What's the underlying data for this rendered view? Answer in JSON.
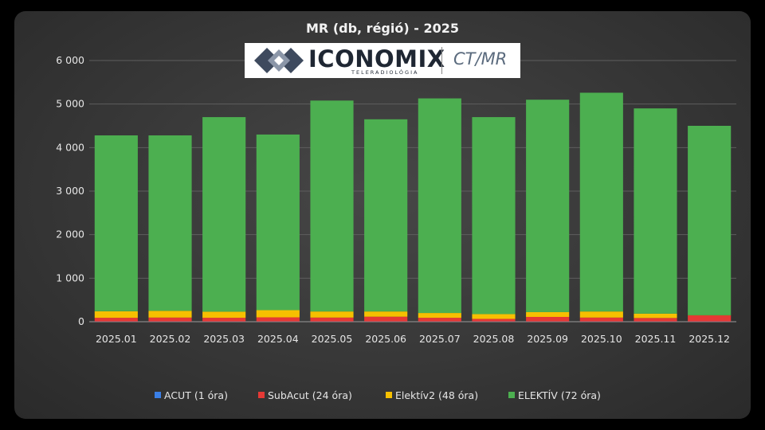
{
  "chart_data": {
    "type": "bar",
    "stacked": true,
    "title": "MR (db, régió) - 2025",
    "categories": [
      "2025.01",
      "2025.02",
      "2025.03",
      "2025.04",
      "2025.05",
      "2025.06",
      "2025.07",
      "2025.08",
      "2025.09",
      "2025.10",
      "2025.11",
      "2025.12"
    ],
    "series": [
      {
        "name": "ACUT (1 óra)",
        "color": "#3a7fe6",
        "values": [
          5,
          5,
          5,
          5,
          5,
          5,
          5,
          5,
          5,
          5,
          5,
          5
        ]
      },
      {
        "name": "SubAcut (24 óra)",
        "color": "#e53935",
        "values": [
          85,
          90,
          85,
          95,
          90,
          110,
          85,
          60,
          105,
          90,
          80,
          140
        ]
      },
      {
        "name": "Elektív2 (48 óra)",
        "color": "#f6c000",
        "values": [
          150,
          155,
          140,
          165,
          140,
          120,
          110,
          110,
          110,
          140,
          100,
          5
        ]
      },
      {
        "name": "ELEKTÍV (72 óra)",
        "color": "#4caf50",
        "values": [
          4040,
          4030,
          4470,
          4035,
          4845,
          4415,
          4930,
          4525,
          4880,
          5025,
          4715,
          4350
        ]
      }
    ],
    "xlabel": "",
    "ylabel": "",
    "ylim": [
      0,
      6000
    ],
    "yticks": [
      0,
      1000,
      2000,
      3000,
      4000,
      5000,
      6000
    ],
    "ytick_labels": [
      "0",
      "1 000",
      "2 000",
      "3 000",
      "4 000",
      "5 000",
      "6 000"
    ],
    "grid": true,
    "legend": "bottom"
  },
  "logo": {
    "name": "ICONOMIX",
    "subtitle": "TELERADIOLÓGIA",
    "tag": "CT/MR"
  }
}
